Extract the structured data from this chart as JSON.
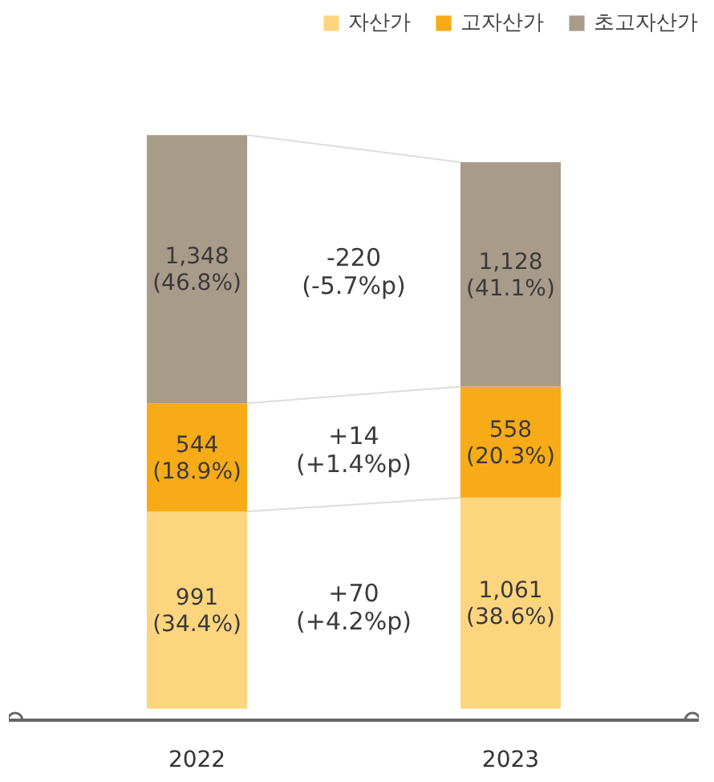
{
  "chart_data": {
    "type": "bar",
    "stacked": true,
    "categories": [
      "2022",
      "2023"
    ],
    "series": [
      {
        "name": "자산가",
        "color": "#fdd57e",
        "values": [
          991,
          1061
        ],
        "value_labels": [
          "991\n(34.4%)",
          "1,061\n(38.6%)"
        ]
      },
      {
        "name": "고자산가",
        "color": "#f7ab17",
        "values": [
          544,
          558
        ],
        "value_labels": [
          "544\n(18.9%)",
          "558\n(20.3%)"
        ]
      },
      {
        "name": "초고자산가",
        "color": "#a99b8a",
        "values": [
          1348,
          1128
        ],
        "value_labels": [
          "1,348\n(46.8%)",
          "1,128\n(41.1%)"
        ]
      }
    ],
    "annotations": [
      "+70\n(+4.2%p)",
      "+14\n(+1.4%p)",
      "-220\n(-5.7%p)"
    ],
    "legend": "top right",
    "grid": false
  }
}
